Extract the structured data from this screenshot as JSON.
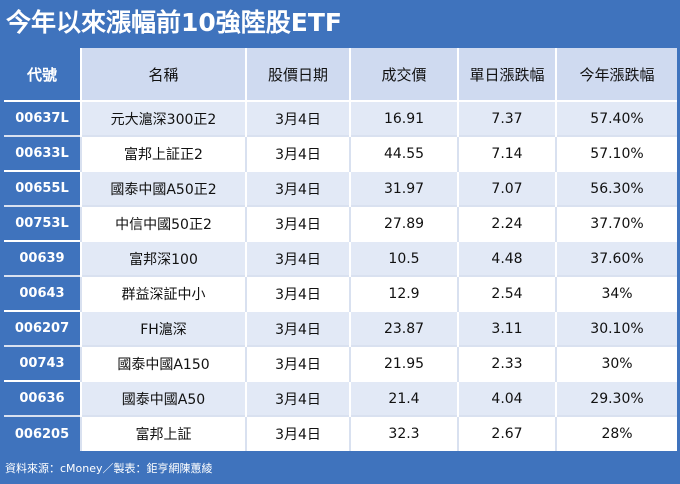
{
  "title": "今年以來漲幅前10強陸股ETF",
  "columns": [
    "代號",
    "名稱",
    "股價日期",
    "成交價",
    "單日漲跌幅",
    "今年漲跌幅"
  ],
  "rows": [
    {
      "code": "00637L",
      "name": "元大滬深300正2",
      "date": "3月4日",
      "price": "16.91",
      "daily": "7.37",
      "ytd": "57.40%"
    },
    {
      "code": "00633L",
      "name": "富邦上証正2",
      "date": "3月4日",
      "price": "44.55",
      "daily": "7.14",
      "ytd": "57.10%"
    },
    {
      "code": "00655L",
      "name": "國泰中國A50正2",
      "date": "3月4日",
      "price": "31.97",
      "daily": "7.07",
      "ytd": "56.30%"
    },
    {
      "code": "00753L",
      "name": "中信中國50正2",
      "date": "3月4日",
      "price": "27.89",
      "daily": "2.24",
      "ytd": "37.70%"
    },
    {
      "code": "00639",
      "name": "富邦深100",
      "date": "3月4日",
      "price": "10.5",
      "daily": "4.48",
      "ytd": "37.60%"
    },
    {
      "code": "00643",
      "name": "群益深証中小",
      "date": "3月4日",
      "price": "12.9",
      "daily": "2.54",
      "ytd": "34%"
    },
    {
      "code": "006207",
      "name": "FH滬深",
      "date": "3月4日",
      "price": "23.87",
      "daily": "3.11",
      "ytd": "30.10%"
    },
    {
      "code": "00743",
      "name": "國泰中國A150",
      "date": "3月4日",
      "price": "21.95",
      "daily": "2.33",
      "ytd": "30%"
    },
    {
      "code": "00636",
      "name": "國泰中國A50",
      "date": "3月4日",
      "price": "21.4",
      "daily": "4.04",
      "ytd": "29.30%"
    },
    {
      "code": "006205",
      "name": "富邦上証",
      "date": "3月4日",
      "price": "32.3",
      "daily": "2.67",
      "ytd": "28%"
    }
  ],
  "source": "資料來源：cMoney／製表：鉅亨網陳蕙綾"
}
